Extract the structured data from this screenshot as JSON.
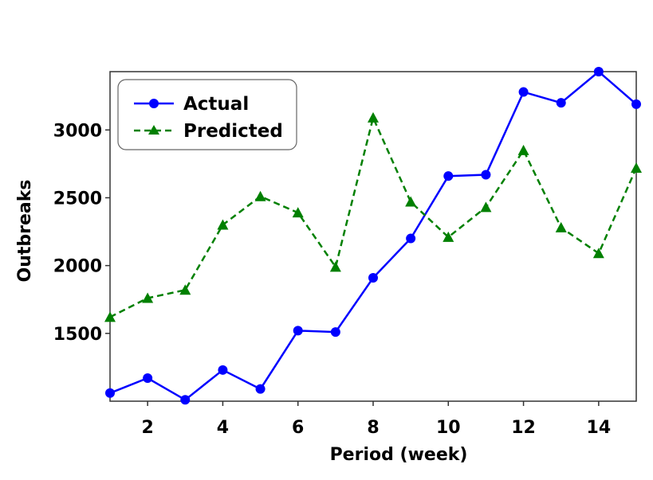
{
  "chart_data": {
    "type": "line",
    "xlabel": "Period  (week)",
    "ylabel": "Outbreaks",
    "xlim": [
      1,
      15
    ],
    "ylim": [
      1000,
      3430
    ],
    "xticks": [
      2,
      4,
      6,
      8,
      10,
      12,
      14
    ],
    "yticks": [
      1500,
      2000,
      2500,
      3000
    ],
    "grid": false,
    "legend_position": "top-left",
    "x": [
      1,
      2,
      3,
      4,
      5,
      6,
      7,
      8,
      9,
      10,
      11,
      12,
      13,
      14,
      15
    ],
    "series": [
      {
        "name": "Actual",
        "color": "#0000ff",
        "marker": "circle",
        "linestyle": "solid",
        "values": [
          1060,
          1170,
          1010,
          1230,
          1090,
          1520,
          1510,
          1910,
          2200,
          2660,
          2670,
          3280,
          3200,
          3430,
          3190
        ]
      },
      {
        "name": "Predicted",
        "color": "#008000",
        "marker": "triangle",
        "linestyle": "dashed",
        "values": [
          1620,
          1760,
          1820,
          2300,
          2510,
          2390,
          1990,
          3090,
          2470,
          2210,
          2430,
          2850,
          2280,
          2090,
          2720
        ]
      }
    ]
  }
}
